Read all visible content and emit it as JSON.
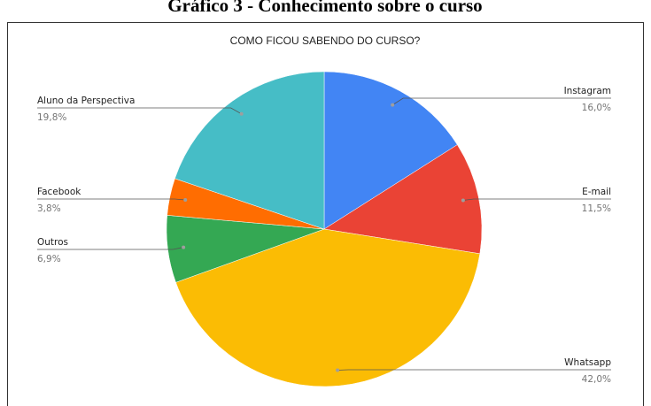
{
  "caption": "Gráfico 3 - Conhecimento sobre o curso",
  "chart_data": {
    "type": "pie",
    "title": "COMO FICOU SABENDO DO CURSO?",
    "categories": [
      "Instagram",
      "E-mail",
      "Whatsapp",
      "Outros",
      "Facebook",
      "Aluno da Perspectiva"
    ],
    "values": [
      16.0,
      11.5,
      42.0,
      6.9,
      3.8,
      19.8
    ],
    "value_labels": [
      "16,0%",
      "11,5%",
      "42,0%",
      "6,9%",
      "3,8%",
      "19,8%"
    ],
    "colors": [
      "#4285f4",
      "#ea4335",
      "#fbbc04",
      "#34a853",
      "#ff6d01",
      "#46bdc6"
    ]
  }
}
